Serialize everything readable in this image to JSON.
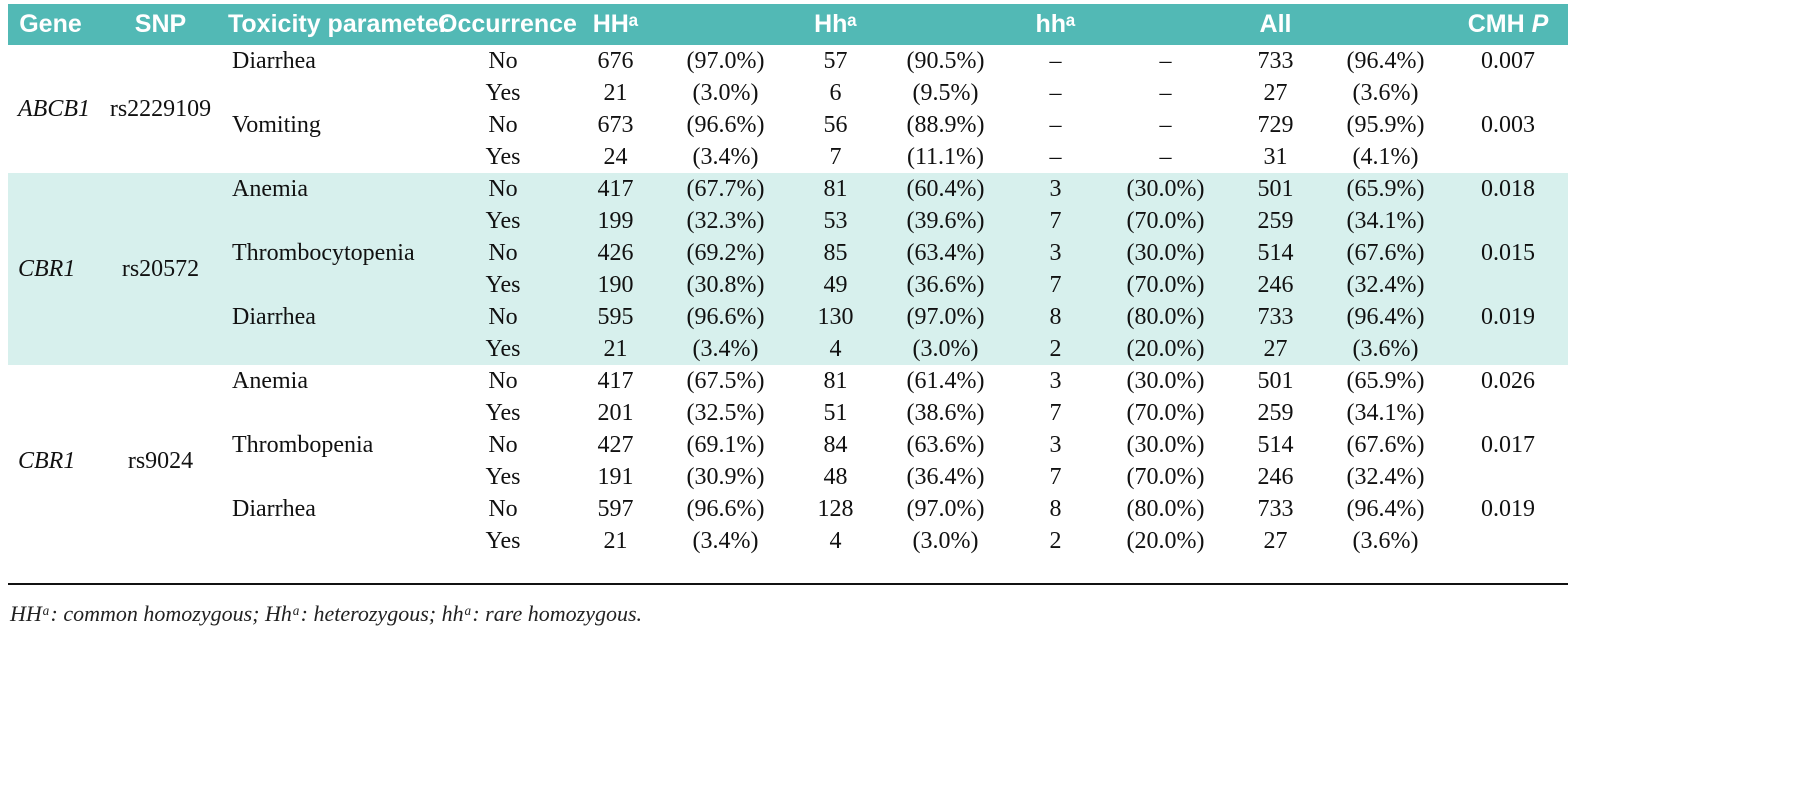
{
  "colors": {
    "header_bg": "#52b9b5",
    "header_text": "#ffffff",
    "highlight_bg": "#d7f0ed",
    "text": "#111111"
  },
  "table": {
    "headers": {
      "gene": "Gene",
      "snp": "SNP",
      "toxicity": "Toxicity parameter",
      "occurrence": "Occurrence",
      "hh": "HHᵃ",
      "het": "Hhᵃ",
      "rare": "hhᵃ",
      "all": "All",
      "cmh": "CMH",
      "p": "P"
    },
    "groups": [
      {
        "gene": "ABCB1",
        "snp": "rs2229109",
        "highlighted": false,
        "rows": [
          [
            "Diarrhea",
            "No",
            "676",
            "(97.0%)",
            "57",
            "(90.5%)",
            "–",
            "–",
            "733",
            "(96.4%)",
            "0.007"
          ],
          [
            "",
            "Yes",
            "21",
            "(3.0%)",
            "6",
            "(9.5%)",
            "–",
            "–",
            "27",
            "(3.6%)",
            ""
          ],
          [
            "Vomiting",
            "No",
            "673",
            "(96.6%)",
            "56",
            "(88.9%)",
            "–",
            "–",
            "729",
            "(95.9%)",
            "0.003"
          ],
          [
            "",
            "Yes",
            "24",
            "(3.4%)",
            "7",
            "(11.1%)",
            "–",
            "–",
            "31",
            "(4.1%)",
            ""
          ]
        ]
      },
      {
        "gene": "CBR1",
        "snp": "rs20572",
        "highlighted": true,
        "rows": [
          [
            "Anemia",
            "No",
            "417",
            "(67.7%)",
            "81",
            "(60.4%)",
            "3",
            "(30.0%)",
            "501",
            "(65.9%)",
            "0.018"
          ],
          [
            "",
            "Yes",
            "199",
            "(32.3%)",
            "53",
            "(39.6%)",
            "7",
            "(70.0%)",
            "259",
            "(34.1%)",
            ""
          ],
          [
            "Thrombocytopenia",
            "No",
            "426",
            "(69.2%)",
            "85",
            "(63.4%)",
            "3",
            "(30.0%)",
            "514",
            "(67.6%)",
            "0.015"
          ],
          [
            "",
            "Yes",
            "190",
            "(30.8%)",
            "49",
            "(36.6%)",
            "7",
            "(70.0%)",
            "246",
            "(32.4%)",
            ""
          ],
          [
            "Diarrhea",
            "No",
            "595",
            "(96.6%)",
            "130",
            "(97.0%)",
            "8",
            "(80.0%)",
            "733",
            "(96.4%)",
            "0.019"
          ],
          [
            "",
            "Yes",
            "21",
            "(3.4%)",
            "4",
            "(3.0%)",
            "2",
            "(20.0%)",
            "27",
            "(3.6%)",
            ""
          ]
        ]
      },
      {
        "gene": "CBR1",
        "snp": "rs9024",
        "highlighted": false,
        "rows": [
          [
            "Anemia",
            "No",
            "417",
            "(67.5%)",
            "81",
            "(61.4%)",
            "3",
            "(30.0%)",
            "501",
            "(65.9%)",
            "0.026"
          ],
          [
            "",
            "Yes",
            "201",
            "(32.5%)",
            "51",
            "(38.6%)",
            "7",
            "(70.0%)",
            "259",
            "(34.1%)",
            ""
          ],
          [
            "Thrombopenia",
            "No",
            "427",
            "(69.1%)",
            "84",
            "(63.6%)",
            "3",
            "(30.0%)",
            "514",
            "(67.6%)",
            "0.017"
          ],
          [
            "",
            "Yes",
            "191",
            "(30.9%)",
            "48",
            "(36.4%)",
            "7",
            "(70.0%)",
            "246",
            "(32.4%)",
            ""
          ],
          [
            "Diarrhea",
            "No",
            "597",
            "(96.6%)",
            "128",
            "(97.0%)",
            "8",
            "(80.0%)",
            "733",
            "(96.4%)",
            "0.019"
          ],
          [
            "",
            "Yes",
            "21",
            "(3.4%)",
            "4",
            "(3.0%)",
            "2",
            "(20.0%)",
            "27",
            "(3.6%)",
            ""
          ]
        ]
      }
    ],
    "footnote": "HHᵃ: common homozygous; Hhᵃ: heterozygous; hhᵃ: rare homozygous."
  }
}
